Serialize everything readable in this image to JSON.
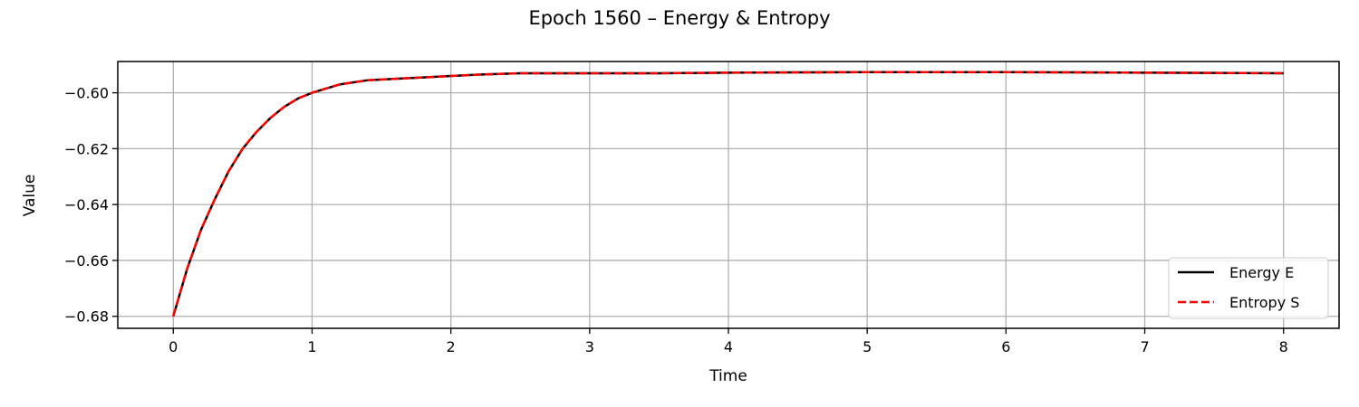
{
  "chart_data": {
    "type": "line",
    "title": "Epoch 1560 – Energy & Entropy",
    "xlabel": "Time",
    "ylabel": "Value",
    "xlim": [
      -0.4,
      8.4
    ],
    "ylim": [
      -0.6843,
      -0.5888
    ],
    "xticks": [
      0,
      1,
      2,
      3,
      4,
      5,
      6,
      7,
      8
    ],
    "xtick_labels": [
      "0",
      "1",
      "2",
      "3",
      "4",
      "5",
      "6",
      "7",
      "8"
    ],
    "yticks": [
      -0.68,
      -0.66,
      -0.64,
      -0.62,
      -0.6
    ],
    "ytick_labels": [
      "−0.68",
      "−0.66",
      "−0.64",
      "−0.62",
      "−0.60"
    ],
    "grid": true,
    "legend": {
      "placement": "lower-right"
    },
    "x": [
      0,
      0.1,
      0.2,
      0.3,
      0.4,
      0.5,
      0.6,
      0.7,
      0.8,
      0.9,
      1.0,
      1.2,
      1.4,
      1.6,
      1.8,
      2.0,
      2.2,
      2.5,
      3.0,
      3.5,
      4.0,
      4.5,
      5.0,
      5.5,
      6.0,
      6.5,
      7.0,
      7.5,
      8.0
    ],
    "series": [
      {
        "name": "Energy E",
        "color": "#000000",
        "style": "solid",
        "values": [
          -0.68,
          -0.663,
          -0.649,
          -0.638,
          -0.628,
          -0.62,
          -0.614,
          -0.609,
          -0.605,
          -0.602,
          -0.6,
          -0.597,
          -0.5955,
          -0.595,
          -0.5945,
          -0.594,
          -0.5935,
          -0.593,
          -0.593,
          -0.593,
          -0.5928,
          -0.5927,
          -0.5926,
          -0.5926,
          -0.5926,
          -0.5927,
          -0.5928,
          -0.5929,
          -0.593
        ]
      },
      {
        "name": "Entropy S",
        "color": "#ff0000",
        "style": "dashed",
        "values": [
          -0.68,
          -0.663,
          -0.649,
          -0.638,
          -0.628,
          -0.62,
          -0.614,
          -0.609,
          -0.605,
          -0.602,
          -0.6,
          -0.597,
          -0.5955,
          -0.595,
          -0.5945,
          -0.594,
          -0.5935,
          -0.593,
          -0.593,
          -0.593,
          -0.5928,
          -0.5927,
          -0.5926,
          -0.5926,
          -0.5926,
          -0.5927,
          -0.5928,
          -0.5929,
          -0.593
        ]
      }
    ]
  }
}
